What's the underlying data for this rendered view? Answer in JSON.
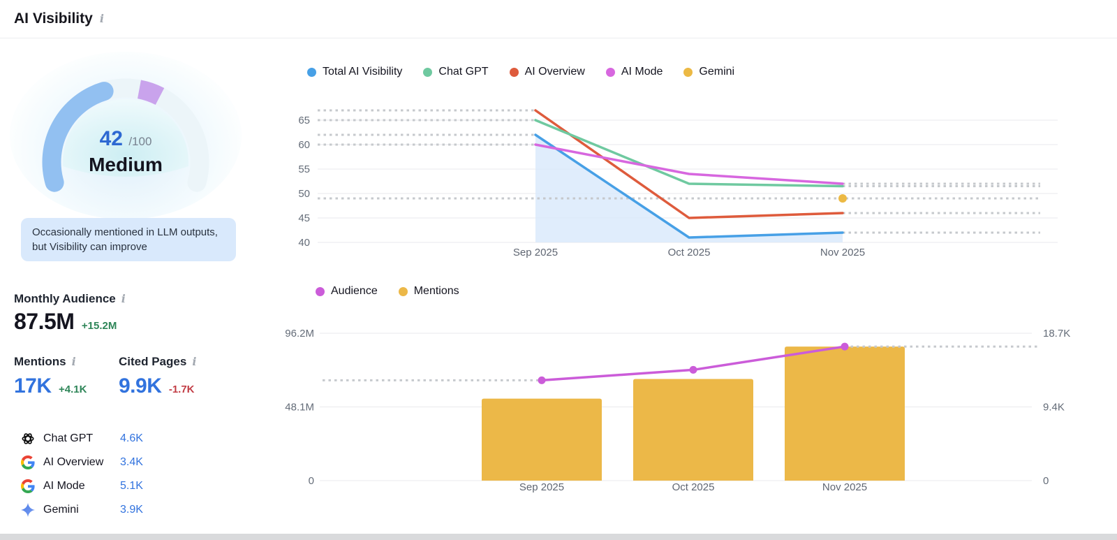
{
  "header": {
    "title": "AI Visibility"
  },
  "gauge": {
    "score": "42",
    "score_value": 42,
    "max_label": "/100",
    "rating": "Medium",
    "note": "Occasionally mentioned in LLM outputs, but Visibility can improve",
    "score_color": "#2d68d2",
    "arc_blue": "#92c0f1",
    "arc_purple": "#c9a3ec",
    "arc_track": "#ecf5f9",
    "purple_segment_start_pct": 55,
    "purple_segment_end_pct": 63
  },
  "audience": {
    "label": "Monthly Audience",
    "value": "87.5M",
    "delta": "+15.2M"
  },
  "mentions": {
    "label": "Mentions",
    "value": "17K",
    "delta": "+4.1K"
  },
  "cited_pages": {
    "label": "Cited Pages",
    "value": "9.9K",
    "delta": "-1.7K"
  },
  "status_colors": {
    "positive": "#2f8659",
    "negative": "#c23d45",
    "metric_blue": "#3273de"
  },
  "platforms": [
    {
      "icon": "chatgpt-icon",
      "name": "Chat GPT",
      "value": "4.6K"
    },
    {
      "icon": "google-icon",
      "name": "AI Overview",
      "value": "3.4K"
    },
    {
      "icon": "google-icon",
      "name": "AI Mode",
      "value": "5.1K"
    },
    {
      "icon": "gemini-icon",
      "name": "Gemini",
      "value": "3.9K"
    }
  ],
  "chart_data": [
    {
      "type": "line",
      "categories": [
        "Sep 2025",
        "Oct 2025",
        "Nov 2025"
      ],
      "series": [
        {
          "name": "Total AI Visibility",
          "color": "#47a0e6",
          "values": [
            62,
            41,
            42
          ],
          "area": true
        },
        {
          "name": "Chat GPT",
          "color": "#6fc9a0",
          "values": [
            65,
            52,
            51.5
          ]
        },
        {
          "name": "AI Overview",
          "color": "#de5b3c",
          "values": [
            67,
            45,
            46
          ]
        },
        {
          "name": "AI Mode",
          "color": "#d767df",
          "values": [
            60,
            54,
            52
          ]
        },
        {
          "name": "Gemini",
          "color": "#ecb944",
          "values": [
            null,
            null,
            49
          ]
        }
      ],
      "yticks": [
        40,
        45,
        50,
        55,
        60,
        65
      ],
      "ylim": [
        40,
        68
      ],
      "grid": true,
      "legend_position": "top",
      "area_fill": "#d8e9fb"
    },
    {
      "type": "combo",
      "categories": [
        "Sep 2025",
        "Oct 2025",
        "Nov 2025"
      ],
      "series": [
        {
          "name": "Audience",
          "type": "line",
          "axis": "left",
          "color": "#cb5cd9",
          "values": [
            65.5,
            72.3,
            87.5
          ]
        },
        {
          "name": "Mentions",
          "type": "bar",
          "axis": "right",
          "color": "#ecb848",
          "values": [
            10.4,
            12.9,
            17
          ]
        }
      ],
      "left_axis": {
        "ticks": [
          "0",
          "48.1M",
          "96.2M"
        ],
        "tick_values": [
          0,
          48.1,
          96.2
        ],
        "max": 96.2,
        "unit": "M"
      },
      "right_axis": {
        "ticks": [
          "0",
          "9.4K",
          "18.7K"
        ],
        "tick_values": [
          0,
          9.35,
          18.7
        ],
        "max": 18.7,
        "unit": "K"
      },
      "grid": true,
      "legend_position": "top"
    }
  ]
}
